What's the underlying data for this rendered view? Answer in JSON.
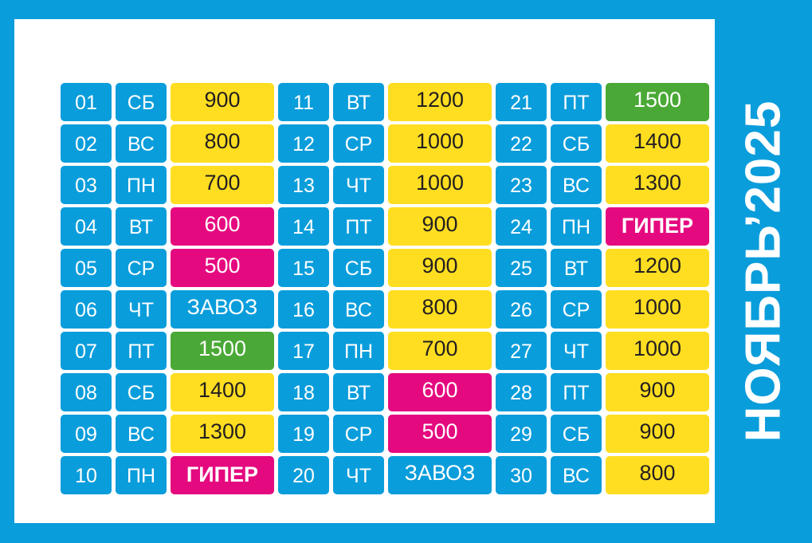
{
  "title": "НОЯБРЬ’2025",
  "colors": {
    "background": "#0a9ddb",
    "card": "#ffffff",
    "yellow": "#ffde21",
    "magenta": "#e5097f",
    "green": "#4aa936",
    "blue": "#0a9ddb"
  },
  "columns": [
    [
      {
        "day": "01",
        "dow": "СБ",
        "value": "900",
        "color": "yellow"
      },
      {
        "day": "02",
        "dow": "ВС",
        "value": "800",
        "color": "yellow"
      },
      {
        "day": "03",
        "dow": "ПН",
        "value": "700",
        "color": "yellow"
      },
      {
        "day": "04",
        "dow": "ВТ",
        "value": "600",
        "color": "magenta"
      },
      {
        "day": "05",
        "dow": "СР",
        "value": "500",
        "color": "magenta"
      },
      {
        "day": "06",
        "dow": "ЧТ",
        "value": "ЗАВОЗ",
        "color": "blue"
      },
      {
        "day": "07",
        "dow": "ПТ",
        "value": "1500",
        "color": "green"
      },
      {
        "day": "08",
        "dow": "СБ",
        "value": "1400",
        "color": "yellow"
      },
      {
        "day": "09",
        "dow": "ВС",
        "value": "1300",
        "color": "yellow"
      },
      {
        "day": "10",
        "dow": "ПН",
        "value": "ГИПЕР",
        "color": "magenta",
        "bold": true
      }
    ],
    [
      {
        "day": "11",
        "dow": "ВТ",
        "value": "1200",
        "color": "yellow"
      },
      {
        "day": "12",
        "dow": "СР",
        "value": "1000",
        "color": "yellow"
      },
      {
        "day": "13",
        "dow": "ЧТ",
        "value": "1000",
        "color": "yellow"
      },
      {
        "day": "14",
        "dow": "ПТ",
        "value": "900",
        "color": "yellow"
      },
      {
        "day": "15",
        "dow": "СБ",
        "value": "900",
        "color": "yellow"
      },
      {
        "day": "16",
        "dow": "ВС",
        "value": "800",
        "color": "yellow"
      },
      {
        "day": "17",
        "dow": "ПН",
        "value": "700",
        "color": "yellow"
      },
      {
        "day": "18",
        "dow": "ВТ",
        "value": "600",
        "color": "magenta"
      },
      {
        "day": "19",
        "dow": "СР",
        "value": "500",
        "color": "magenta"
      },
      {
        "day": "20",
        "dow": "ЧТ",
        "value": "ЗАВОЗ",
        "color": "blue"
      }
    ],
    [
      {
        "day": "21",
        "dow": "ПТ",
        "value": "1500",
        "color": "green"
      },
      {
        "day": "22",
        "dow": "СБ",
        "value": "1400",
        "color": "yellow"
      },
      {
        "day": "23",
        "dow": "ВС",
        "value": "1300",
        "color": "yellow"
      },
      {
        "day": "24",
        "dow": "ПН",
        "value": "ГИПЕР",
        "color": "magenta",
        "bold": true
      },
      {
        "day": "25",
        "dow": "ВТ",
        "value": "1200",
        "color": "yellow"
      },
      {
        "day": "26",
        "dow": "СР",
        "value": "1000",
        "color": "yellow"
      },
      {
        "day": "27",
        "dow": "ЧТ",
        "value": "1000",
        "color": "yellow"
      },
      {
        "day": "28",
        "dow": "ПТ",
        "value": "900",
        "color": "yellow"
      },
      {
        "day": "29",
        "dow": "СБ",
        "value": "900",
        "color": "yellow"
      },
      {
        "day": "30",
        "dow": "ВС",
        "value": "800",
        "color": "yellow"
      }
    ]
  ]
}
